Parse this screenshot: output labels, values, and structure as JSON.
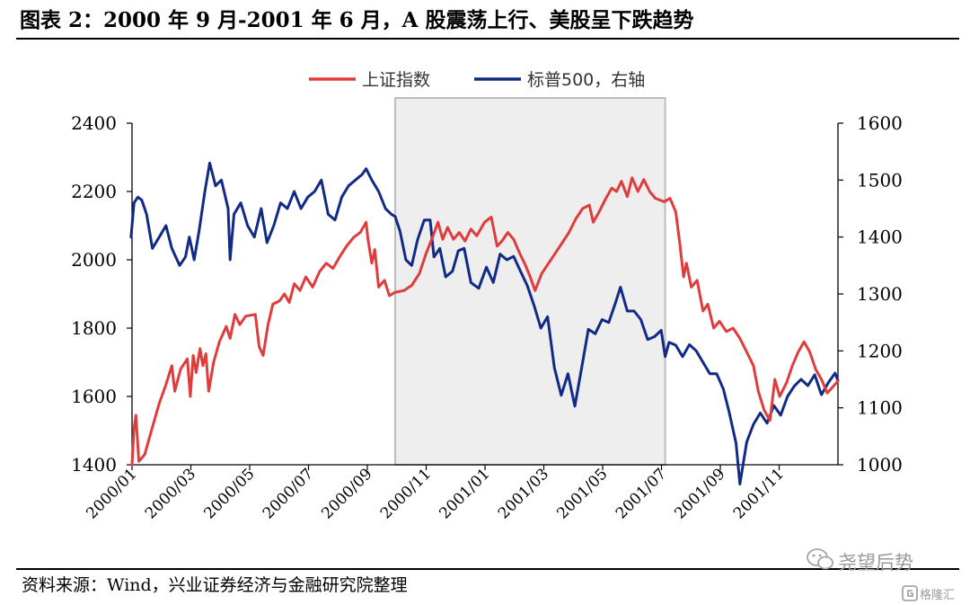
{
  "header": {
    "title": "图表 2：2000 年 9 月-2001 年 6 月，A 股震荡上行、美股呈下跌趋势"
  },
  "footer": {
    "source": "资料来源：Wind，兴业证券经济与金融研究院整理"
  },
  "watermark": {
    "text": "尧望后势",
    "brand": "格隆汇"
  },
  "colors": {
    "shanghai": "#e03c3c",
    "sp500": "#102a86",
    "highlight_fill": "#eeeeee",
    "highlight_border": "#bdbdbd"
  },
  "chart_data": {
    "type": "line",
    "title": "",
    "legend": {
      "placement": "top-center"
    },
    "x_range": [
      "2000-01-04",
      "2001-12-31"
    ],
    "x_tick_labels": [
      "2000/01",
      "2000/03",
      "2000/05",
      "2000/07",
      "2000/09",
      "2000/11",
      "2001/01",
      "2001/03",
      "2001/05",
      "2001/07",
      "2001/09",
      "2001/11"
    ],
    "y_left": {
      "range": [
        1400,
        2400
      ],
      "ticks": [
        1400,
        1600,
        1800,
        2000,
        2200,
        2400
      ]
    },
    "y_right": {
      "range": [
        1000,
        1600
      ],
      "ticks": [
        1000,
        1100,
        1200,
        1300,
        1400,
        1500,
        1600
      ]
    },
    "highlight": {
      "start": "2000-10-01",
      "end": "2001-07-06"
    },
    "series": [
      {
        "name": "上证指数",
        "axis": "left",
        "points": [
          [
            "2000-01-04",
            1400
          ],
          [
            "2000-01-06",
            1505
          ],
          [
            "2000-01-08",
            1545
          ],
          [
            "2000-01-11",
            1410
          ],
          [
            "2000-01-17",
            1430
          ],
          [
            "2000-01-25",
            1510
          ],
          [
            "2000-02-01",
            1580
          ],
          [
            "2000-02-08",
            1635
          ],
          [
            "2000-02-14",
            1690
          ],
          [
            "2000-02-17",
            1615
          ],
          [
            "2000-02-23",
            1680
          ],
          [
            "2000-03-01",
            1710
          ],
          [
            "2000-03-04",
            1600
          ],
          [
            "2000-03-07",
            1720
          ],
          [
            "2000-03-10",
            1670
          ],
          [
            "2000-03-14",
            1740
          ],
          [
            "2000-03-17",
            1690
          ],
          [
            "2000-03-20",
            1725
          ],
          [
            "2000-03-23",
            1615
          ],
          [
            "2000-03-28",
            1700
          ],
          [
            "2000-04-03",
            1760
          ],
          [
            "2000-04-10",
            1805
          ],
          [
            "2000-04-14",
            1770
          ],
          [
            "2000-04-19",
            1840
          ],
          [
            "2000-04-24",
            1810
          ],
          [
            "2000-04-30",
            1835
          ],
          [
            "2000-05-10",
            1840
          ],
          [
            "2000-05-14",
            1745
          ],
          [
            "2000-05-18",
            1720
          ],
          [
            "2000-05-23",
            1810
          ],
          [
            "2000-05-28",
            1870
          ],
          [
            "2000-06-04",
            1880
          ],
          [
            "2000-06-09",
            1900
          ],
          [
            "2000-06-14",
            1875
          ],
          [
            "2000-06-19",
            1930
          ],
          [
            "2000-06-25",
            1910
          ],
          [
            "2000-07-01",
            1950
          ],
          [
            "2000-07-08",
            1920
          ],
          [
            "2000-07-15",
            1965
          ],
          [
            "2000-07-22",
            1990
          ],
          [
            "2000-07-29",
            1975
          ],
          [
            "2000-08-05",
            2010
          ],
          [
            "2000-08-12",
            2040
          ],
          [
            "2000-08-19",
            2065
          ],
          [
            "2000-08-26",
            2080
          ],
          [
            "2000-09-01",
            2110
          ],
          [
            "2000-09-03",
            2060
          ],
          [
            "2000-09-07",
            1990
          ],
          [
            "2000-09-10",
            2030
          ],
          [
            "2000-09-14",
            1920
          ],
          [
            "2000-09-20",
            1940
          ],
          [
            "2000-09-25",
            1895
          ],
          [
            "2000-10-01",
            1905
          ],
          [
            "2000-10-10",
            1910
          ],
          [
            "2000-10-18",
            1925
          ],
          [
            "2000-10-26",
            1960
          ],
          [
            "2000-11-02",
            2020
          ],
          [
            "2000-11-09",
            2070
          ],
          [
            "2000-11-14",
            2110
          ],
          [
            "2000-11-19",
            2060
          ],
          [
            "2000-11-24",
            2095
          ],
          [
            "2000-11-30",
            2060
          ],
          [
            "2000-12-06",
            2080
          ],
          [
            "2000-12-12",
            2055
          ],
          [
            "2000-12-18",
            2090
          ],
          [
            "2000-12-24",
            2070
          ],
          [
            "2001-01-01",
            2110
          ],
          [
            "2001-01-08",
            2125
          ],
          [
            "2001-01-14",
            2040
          ],
          [
            "2001-01-19",
            2055
          ],
          [
            "2001-01-25",
            2080
          ],
          [
            "2001-01-31",
            2060
          ],
          [
            "2001-02-06",
            2020
          ],
          [
            "2001-02-12",
            1985
          ],
          [
            "2001-02-17",
            1950
          ],
          [
            "2001-02-22",
            1910
          ],
          [
            "2001-03-01",
            1960
          ],
          [
            "2001-03-08",
            1990
          ],
          [
            "2001-03-15",
            2020
          ],
          [
            "2001-03-22",
            2050
          ],
          [
            "2001-03-29",
            2080
          ],
          [
            "2001-04-05",
            2120
          ],
          [
            "2001-04-12",
            2150
          ],
          [
            "2001-04-19",
            2160
          ],
          [
            "2001-04-23",
            2110
          ],
          [
            "2001-04-29",
            2140
          ],
          [
            "2001-05-06",
            2180
          ],
          [
            "2001-05-12",
            2210
          ],
          [
            "2001-05-17",
            2200
          ],
          [
            "2001-05-22",
            2230
          ],
          [
            "2001-05-28",
            2185
          ],
          [
            "2001-06-02",
            2240
          ],
          [
            "2001-06-08",
            2200
          ],
          [
            "2001-06-14",
            2235
          ],
          [
            "2001-06-20",
            2200
          ],
          [
            "2001-06-26",
            2180
          ],
          [
            "2001-07-05",
            2170
          ],
          [
            "2001-07-11",
            2180
          ],
          [
            "2001-07-17",
            2140
          ],
          [
            "2001-07-21",
            2050
          ],
          [
            "2001-07-25",
            1950
          ],
          [
            "2001-07-28",
            1990
          ],
          [
            "2001-08-02",
            1920
          ],
          [
            "2001-08-08",
            1940
          ],
          [
            "2001-08-14",
            1850
          ],
          [
            "2001-08-19",
            1870
          ],
          [
            "2001-08-25",
            1800
          ],
          [
            "2001-08-31",
            1820
          ],
          [
            "2001-09-07",
            1790
          ],
          [
            "2001-09-14",
            1800
          ],
          [
            "2001-09-21",
            1770
          ],
          [
            "2001-09-28",
            1730
          ],
          [
            "2001-10-05",
            1690
          ],
          [
            "2001-10-10",
            1615
          ],
          [
            "2001-10-16",
            1560
          ],
          [
            "2001-10-22",
            1530
          ],
          [
            "2001-10-27",
            1650
          ],
          [
            "2001-11-01",
            1600
          ],
          [
            "2001-11-08",
            1640
          ],
          [
            "2001-11-14",
            1690
          ],
          [
            "2001-11-20",
            1730
          ],
          [
            "2001-11-26",
            1760
          ],
          [
            "2001-12-02",
            1730
          ],
          [
            "2001-12-08",
            1680
          ],
          [
            "2001-12-14",
            1650
          ],
          [
            "2001-12-20",
            1610
          ],
          [
            "2001-12-31",
            1645
          ]
        ]
      },
      {
        "name": "标普500，右轴",
        "axis": "right",
        "points": [
          [
            "2000-01-03",
            1400
          ],
          [
            "2000-01-06",
            1460
          ],
          [
            "2000-01-10",
            1470
          ],
          [
            "2000-01-14",
            1465
          ],
          [
            "2000-01-19",
            1440
          ],
          [
            "2000-01-25",
            1380
          ],
          [
            "2000-02-01",
            1400
          ],
          [
            "2000-02-08",
            1420
          ],
          [
            "2000-02-14",
            1380
          ],
          [
            "2000-02-22",
            1350
          ],
          [
            "2000-02-28",
            1365
          ],
          [
            "2000-03-03",
            1400
          ],
          [
            "2000-03-08",
            1360
          ],
          [
            "2000-03-13",
            1410
          ],
          [
            "2000-03-19",
            1480
          ],
          [
            "2000-03-24",
            1530
          ],
          [
            "2000-03-30",
            1490
          ],
          [
            "2000-04-05",
            1500
          ],
          [
            "2000-04-12",
            1450
          ],
          [
            "2000-04-14",
            1360
          ],
          [
            "2000-04-18",
            1440
          ],
          [
            "2000-04-25",
            1460
          ],
          [
            "2000-05-02",
            1420
          ],
          [
            "2000-05-09",
            1400
          ],
          [
            "2000-05-16",
            1450
          ],
          [
            "2000-05-22",
            1390
          ],
          [
            "2000-05-29",
            1420
          ],
          [
            "2000-06-05",
            1460
          ],
          [
            "2000-06-12",
            1450
          ],
          [
            "2000-06-19",
            1480
          ],
          [
            "2000-06-26",
            1450
          ],
          [
            "2000-07-03",
            1470
          ],
          [
            "2000-07-10",
            1480
          ],
          [
            "2000-07-17",
            1500
          ],
          [
            "2000-07-24",
            1440
          ],
          [
            "2000-07-31",
            1430
          ],
          [
            "2000-08-07",
            1470
          ],
          [
            "2000-08-14",
            1490
          ],
          [
            "2000-08-21",
            1500
          ],
          [
            "2000-08-28",
            1510
          ],
          [
            "2000-09-01",
            1520
          ],
          [
            "2000-09-07",
            1500
          ],
          [
            "2000-09-14",
            1480
          ],
          [
            "2000-09-21",
            1450
          ],
          [
            "2000-09-27",
            1440
          ],
          [
            "2000-10-01",
            1436
          ],
          [
            "2000-10-06",
            1410
          ],
          [
            "2000-10-12",
            1360
          ],
          [
            "2000-10-18",
            1350
          ],
          [
            "2000-10-24",
            1395
          ],
          [
            "2000-10-31",
            1430
          ],
          [
            "2000-11-06",
            1430
          ],
          [
            "2000-11-10",
            1365
          ],
          [
            "2000-11-16",
            1380
          ],
          [
            "2000-11-22",
            1330
          ],
          [
            "2000-11-29",
            1340
          ],
          [
            "2000-12-05",
            1376
          ],
          [
            "2000-12-11",
            1380
          ],
          [
            "2000-12-18",
            1320
          ],
          [
            "2000-12-26",
            1310
          ],
          [
            "2001-01-03",
            1347
          ],
          [
            "2001-01-10",
            1320
          ],
          [
            "2001-01-17",
            1370
          ],
          [
            "2001-01-24",
            1360
          ],
          [
            "2001-01-31",
            1366
          ],
          [
            "2001-02-07",
            1340
          ],
          [
            "2001-02-14",
            1315
          ],
          [
            "2001-02-21",
            1280
          ],
          [
            "2001-02-28",
            1240
          ],
          [
            "2001-03-07",
            1260
          ],
          [
            "2001-03-14",
            1170
          ],
          [
            "2001-03-21",
            1122
          ],
          [
            "2001-03-28",
            1160
          ],
          [
            "2001-04-04",
            1103
          ],
          [
            "2001-04-11",
            1170
          ],
          [
            "2001-04-18",
            1238
          ],
          [
            "2001-04-25",
            1230
          ],
          [
            "2001-05-02",
            1255
          ],
          [
            "2001-05-09",
            1250
          ],
          [
            "2001-05-16",
            1285
          ],
          [
            "2001-05-21",
            1312
          ],
          [
            "2001-05-28",
            1270
          ],
          [
            "2001-06-04",
            1270
          ],
          [
            "2001-06-11",
            1255
          ],
          [
            "2001-06-18",
            1220
          ],
          [
            "2001-06-25",
            1225
          ],
          [
            "2001-07-02",
            1236
          ],
          [
            "2001-07-06",
            1190
          ],
          [
            "2001-07-10",
            1215
          ],
          [
            "2001-07-17",
            1210
          ],
          [
            "2001-07-24",
            1190
          ],
          [
            "2001-07-31",
            1211
          ],
          [
            "2001-08-07",
            1200
          ],
          [
            "2001-08-14",
            1180
          ],
          [
            "2001-08-21",
            1160
          ],
          [
            "2001-08-28",
            1160
          ],
          [
            "2001-09-04",
            1133
          ],
          [
            "2001-09-10",
            1092
          ],
          [
            "2001-09-17",
            1038
          ],
          [
            "2001-09-21",
            966
          ],
          [
            "2001-09-28",
            1040
          ],
          [
            "2001-10-05",
            1071
          ],
          [
            "2001-10-12",
            1091
          ],
          [
            "2001-10-19",
            1073
          ],
          [
            "2001-10-26",
            1104
          ],
          [
            "2001-11-02",
            1087
          ],
          [
            "2001-11-09",
            1120
          ],
          [
            "2001-11-16",
            1138
          ],
          [
            "2001-11-23",
            1150
          ],
          [
            "2001-11-30",
            1139
          ],
          [
            "2001-12-07",
            1158
          ],
          [
            "2001-12-14",
            1123
          ],
          [
            "2001-12-21",
            1144
          ],
          [
            "2001-12-28",
            1161
          ],
          [
            "2001-12-31",
            1148
          ]
        ]
      }
    ]
  }
}
